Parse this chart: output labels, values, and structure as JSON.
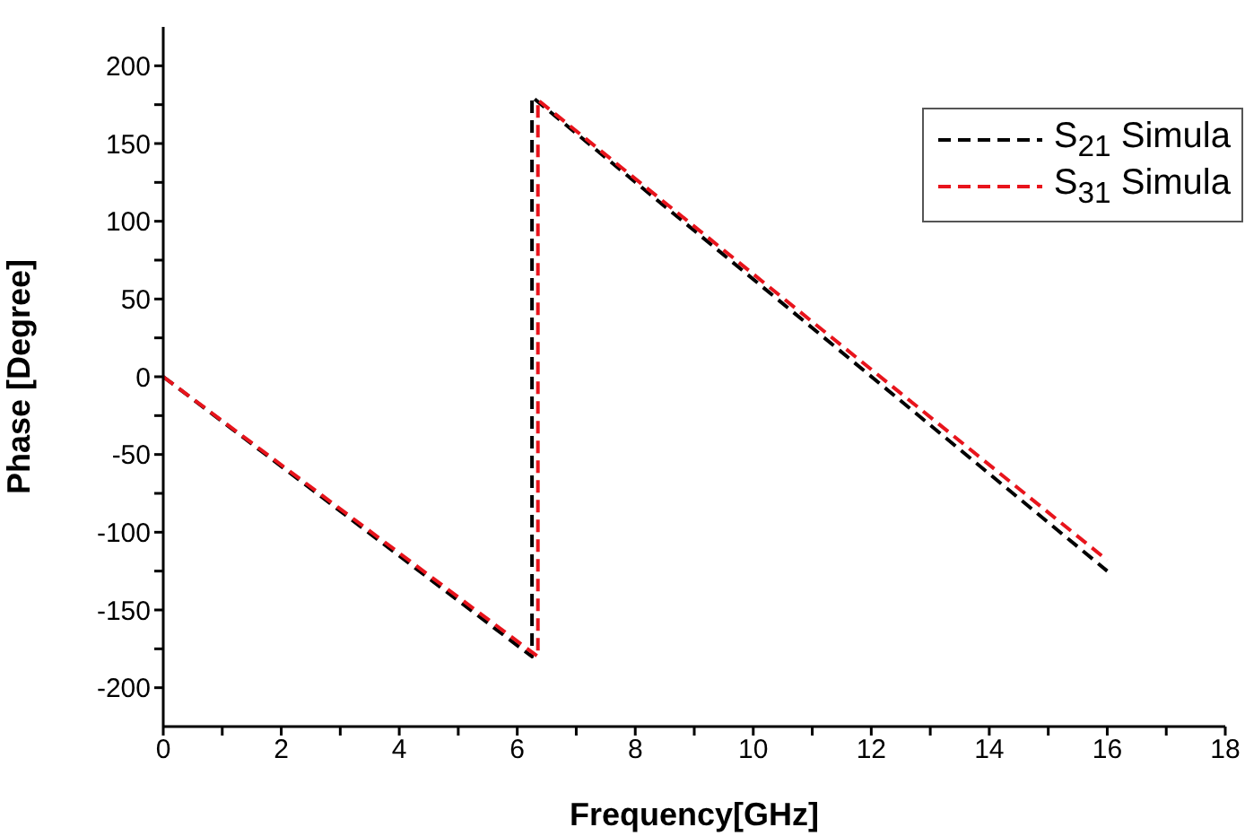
{
  "chart_data": {
    "type": "line",
    "xlabel": "Frequency[GHz]",
    "ylabel": "Phase [Degree]",
    "xlim": [
      0,
      18
    ],
    "xticks": [
      0,
      {
        "value": 1,
        "label": null
      },
      2,
      {
        "value": 3,
        "label": null
      },
      4,
      {
        "value": 5,
        "label": null
      },
      6,
      {
        "value": 7,
        "label": null
      },
      8,
      {
        "value": 9,
        "label": null
      },
      10,
      {
        "value": 11,
        "label": null
      },
      12,
      {
        "value": 13,
        "label": null
      },
      14,
      {
        "value": 15,
        "label": null
      },
      16,
      {
        "value": 17,
        "label": null
      },
      18
    ],
    "ylim": [
      -225,
      225
    ],
    "yticks": [
      -200,
      {
        "value": -175,
        "label": null
      },
      -150,
      {
        "value": -125,
        "label": null
      },
      -100,
      {
        "value": -75,
        "label": null
      },
      -50,
      {
        "value": -25,
        "label": null
      },
      0,
      {
        "value": 25,
        "label": null
      },
      50,
      {
        "value": 75,
        "label": null
      },
      100,
      {
        "value": 125,
        "label": null
      },
      150,
      {
        "value": 175,
        "label": null
      },
      200
    ],
    "series": [
      {
        "name": "S$_{21}$ Simula",
        "color": "#000000",
        "line_style": "dashed",
        "x": [
          0,
          6.25,
          6.25,
          16
        ],
        "values": [
          0,
          -180,
          180,
          -125
        ]
      },
      {
        "name": "S$_{31}$ Simula",
        "color": "#e8141c",
        "line_style": "dashed",
        "x": [
          0,
          6.35,
          6.35,
          16
        ],
        "values": [
          0,
          -180,
          178,
          -118
        ]
      }
    ],
    "legend": "top right",
    "grid": false,
    "marker": "none"
  }
}
